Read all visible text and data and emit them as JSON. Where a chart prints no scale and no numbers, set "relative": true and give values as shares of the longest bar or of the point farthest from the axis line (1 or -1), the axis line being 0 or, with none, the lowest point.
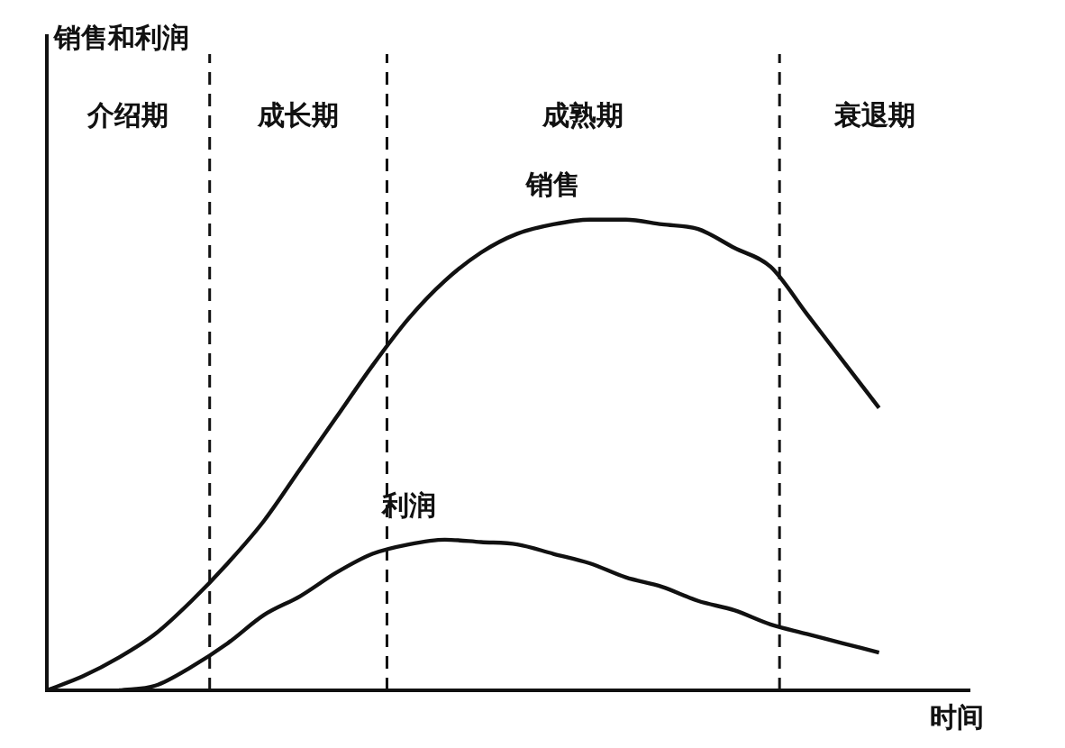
{
  "chart_data": {
    "type": "line",
    "relative": true,
    "xlabel": "时间",
    "categories": [
      null,
      null,
      null,
      null,
      null,
      null,
      null,
      null,
      null,
      null,
      null,
      null,
      null,
      null,
      null,
      null,
      null,
      null,
      null,
      null,
      null,
      null,
      null,
      null
    ],
    "series": [
      {
        "name": "销售",
        "color": "#111111",
        "values": [
          0,
          0.03,
          0.07,
          0.12,
          0.19,
          0.27,
          0.36,
          0.47,
          0.58,
          0.69,
          0.79,
          0.87,
          0.93,
          0.97,
          0.99,
          1.0,
          1.0,
          0.99,
          0.98,
          0.94,
          0.9,
          0.8,
          0.7,
          0.6
        ]
      },
      {
        "name": "利润",
        "color": "#111111",
        "values": [
          null,
          null,
          0,
          0.01,
          0.05,
          0.1,
          0.16,
          0.2,
          0.25,
          0.29,
          0.31,
          0.32,
          0.315,
          0.31,
          0.29,
          0.27,
          0.24,
          0.22,
          0.19,
          0.17,
          0.14,
          0.12,
          0.1,
          0.08
        ]
      }
    ],
    "annotations": [
      "销售和利润",
      "介绍期",
      "成长期",
      "成熟期",
      "衰退期"
    ],
    "grid": false,
    "legend": false,
    "marker": "none",
    "line_style": "solid"
  }
}
